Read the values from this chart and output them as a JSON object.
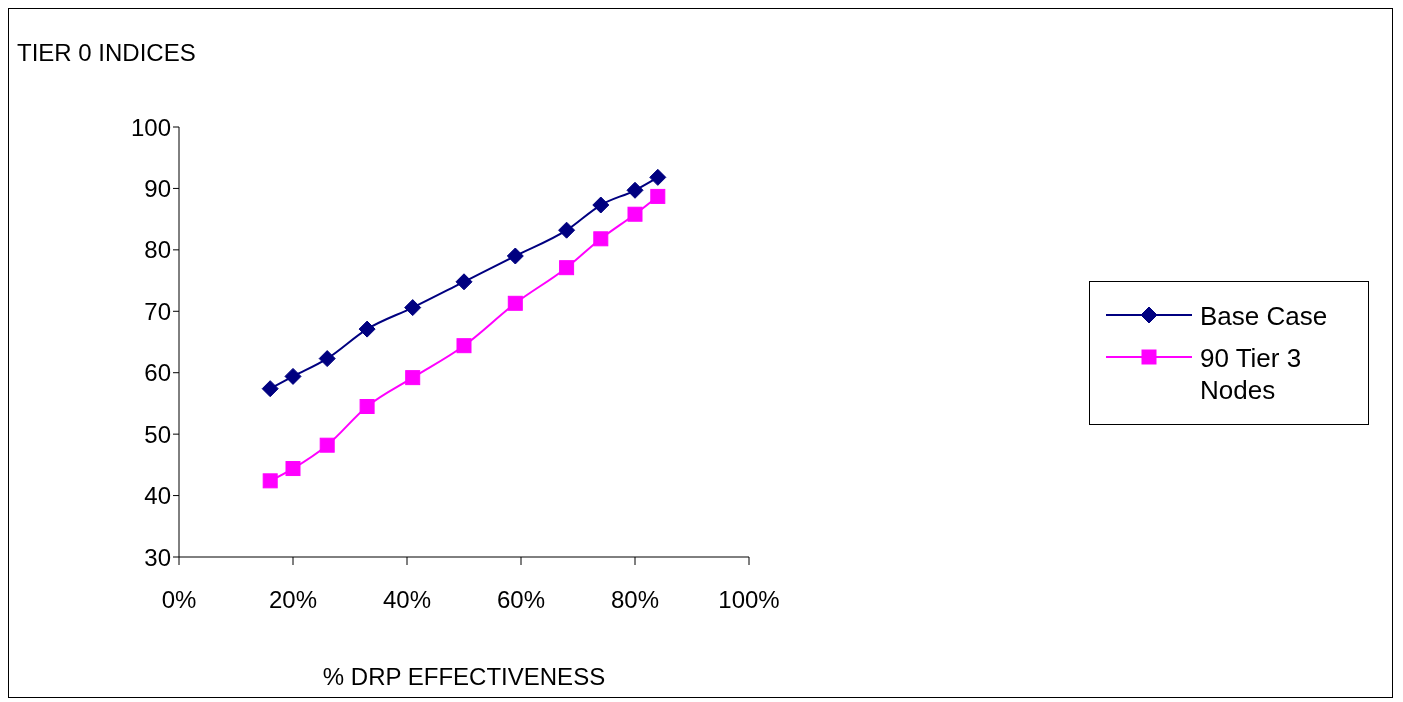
{
  "chart_data": {
    "type": "line",
    "title": "TIER 0 INDICES",
    "xlabel": "% DRP EFFECTIVENESS",
    "xlim": [
      0,
      100
    ],
    "xticks": [
      {
        "value": 0,
        "label": "0%"
      },
      {
        "value": 20,
        "label": "20%"
      },
      {
        "value": 40,
        "label": "40%"
      },
      {
        "value": 60,
        "label": "60%"
      },
      {
        "value": 80,
        "label": "80%"
      },
      {
        "value": 100,
        "label": "100%"
      }
    ],
    "ylim": [
      30,
      100
    ],
    "yticks": [
      30,
      40,
      50,
      60,
      70,
      80,
      90,
      100
    ],
    "grid": false,
    "legend": "right",
    "series": [
      {
        "name": "Base Case",
        "color": "#000080",
        "marker": "diamond",
        "x": [
          16,
          20,
          26,
          33,
          41,
          50,
          59,
          68,
          74,
          80,
          84
        ],
        "values": [
          57.4,
          59.4,
          62.3,
          67.1,
          70.6,
          74.8,
          79,
          83.2,
          87.3,
          89.7,
          91.8
        ]
      },
      {
        "name": "90 Tier 3 Nodes",
        "color": "#ff00ff",
        "marker": "square",
        "x": [
          16,
          20,
          26,
          33,
          41,
          50,
          59,
          68,
          74,
          80,
          84
        ],
        "values": [
          42.4,
          44.4,
          48.2,
          54.5,
          59.2,
          64.4,
          71.3,
          77.1,
          81.8,
          85.8,
          88.7
        ]
      }
    ]
  }
}
